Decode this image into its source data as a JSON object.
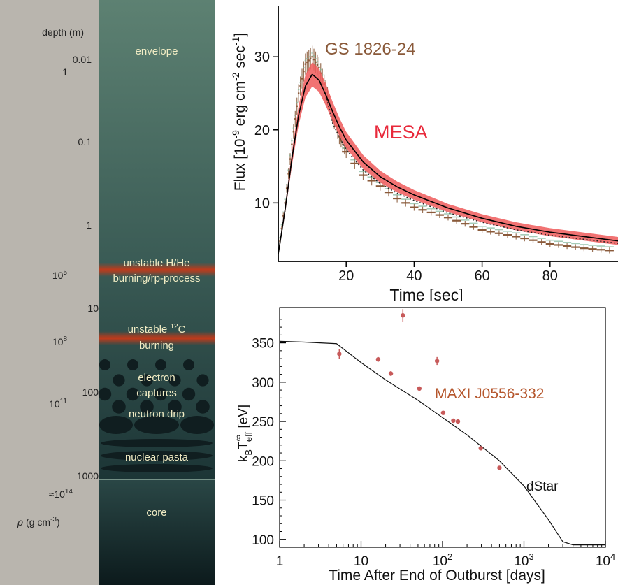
{
  "diagram": {
    "depth_header": "depth (m)",
    "density_header_prefix": "ρ",
    "density_header_units": "(g cm",
    "density_header_exp": "-3",
    "density_header_close": ")",
    "depth_labels": [
      "0.01",
      "0.1",
      "1",
      "10",
      "100",
      "1000"
    ],
    "density_labels": [
      {
        "mantissa": "1",
        "exp": ""
      },
      {
        "mantissa": "10",
        "exp": "5"
      },
      {
        "mantissa": "10",
        "exp": "8"
      },
      {
        "mantissa": "10",
        "exp": "11"
      },
      {
        "mantissa": "≈10",
        "exp": "14"
      }
    ],
    "layers": {
      "envelope": "envelope",
      "hhe_line1": "unstable H/He",
      "hhe_line2": "burning/rp-process",
      "carbon_line1_prefix": "unstable ",
      "carbon_line1_sup": "12",
      "carbon_line1_suffix": "C",
      "carbon_line2": "burning",
      "electron_line1": "electron",
      "electron_line2": "captures",
      "neutron_drip": "neutron drip",
      "nuclear_pasta": "nuclear pasta",
      "core": "core"
    },
    "colors": {
      "side_bar": "#b9b5ae",
      "column_top": "#5b7f70",
      "column_bottom": "#102224",
      "burning_band": "#c23a1a",
      "label": "#f1ecc4"
    }
  },
  "chart_data": [
    {
      "type": "line",
      "ylabel_main": "Flux [10",
      "ylabel_exp1": "-9",
      "ylabel_mid": " erg cm",
      "ylabel_exp2": "-2",
      "ylabel_end": " sec",
      "ylabel_exp3": "-1",
      "ylabel_close": "]",
      "xlabel": "Time [sec]",
      "xlim": [
        0,
        100
      ],
      "ylim": [
        2,
        37
      ],
      "x_ticks": [
        20,
        40,
        60,
        80
      ],
      "y_ticks": [
        10,
        20,
        30
      ],
      "annotations": [
        {
          "text": "GS 1826-24",
          "color": "#8a5a3a"
        },
        {
          "text": "MESA",
          "color": "#e8293b"
        }
      ],
      "series": [
        {
          "name": "MESA",
          "color": "#ee5a5a",
          "x": [
            0,
            2,
            4,
            6,
            8,
            10,
            12,
            14,
            16,
            18,
            20,
            25,
            30,
            35,
            40,
            50,
            60,
            70,
            80,
            90,
            100
          ],
          "y": [
            3,
            9,
            16,
            22,
            26,
            27.6,
            26.8,
            24.8,
            22.5,
            20.4,
            18.6,
            15.6,
            13.6,
            12.2,
            11.1,
            9.3,
            7.9,
            6.8,
            6.0,
            5.4,
            4.8
          ]
        },
        {
          "name": "GS 1826-24",
          "color": "#8a5a3a",
          "x": [
            0,
            2,
            4,
            6,
            8,
            10,
            12,
            14,
            16,
            18,
            20,
            25,
            30,
            35,
            40,
            50,
            60,
            70,
            80,
            90,
            100
          ],
          "y": [
            3,
            10,
            18,
            25,
            29,
            30,
            28.5,
            25.5,
            22,
            19,
            17,
            13.8,
            12.3,
            10.6,
            9.4,
            8.0,
            6.3,
            5.4,
            4.4,
            3.8,
            3.4
          ]
        }
      ]
    },
    {
      "type": "scatter",
      "ylabel_main": "k",
      "ylabel_sub1": "B",
      "ylabel_mid": "T",
      "ylabel_sup": "∞",
      "ylabel_sub2": "eff",
      "ylabel_end": " [eV]",
      "xlabel": "Time After End of Outburst [days]",
      "xscale": "log",
      "xlim": [
        1,
        10000
      ],
      "ylim": [
        90,
        395
      ],
      "x_ticks": [
        {
          "mantissa": "1",
          "exp": "",
          "value": 1
        },
        {
          "mantissa": "10",
          "exp": "",
          "value": 10
        },
        {
          "mantissa": "10",
          "exp": "2",
          "value": 100
        },
        {
          "mantissa": "10",
          "exp": "3",
          "value": 1000
        },
        {
          "mantissa": "10",
          "exp": "4",
          "value": 10000
        }
      ],
      "y_ticks": [
        100,
        150,
        200,
        250,
        300,
        350
      ],
      "annotations": [
        {
          "text": "MAXI J0556-332",
          "color": "#b5562c"
        },
        {
          "text": "dStar",
          "color": "#111111"
        }
      ],
      "series": [
        {
          "name": "MAXI J0556-332",
          "color": "#c75a5a",
          "x": [
            5.4,
            16.2,
            23.2,
            32.6,
            51.9,
            85.6,
            101.8,
            135.5,
            154.3,
            295,
            500
          ],
          "y": [
            336,
            329,
            311,
            385,
            292,
            327,
            261,
            251,
            250,
            216,
            191
          ],
          "err": [
            6,
            3,
            3,
            8,
            2,
            5,
            2,
            2,
            2,
            2,
            2
          ]
        },
        {
          "name": "dStar",
          "color": "#111111",
          "x": [
            1,
            2,
            5,
            10,
            20,
            50,
            100,
            200,
            500,
            1000,
            2000,
            3000,
            4000,
            5000,
            10000
          ],
          "y": [
            352,
            351,
            349,
            325,
            303,
            277,
            255,
            233,
            200,
            168,
            125,
            97,
            93,
            93,
            93
          ]
        }
      ]
    }
  ]
}
